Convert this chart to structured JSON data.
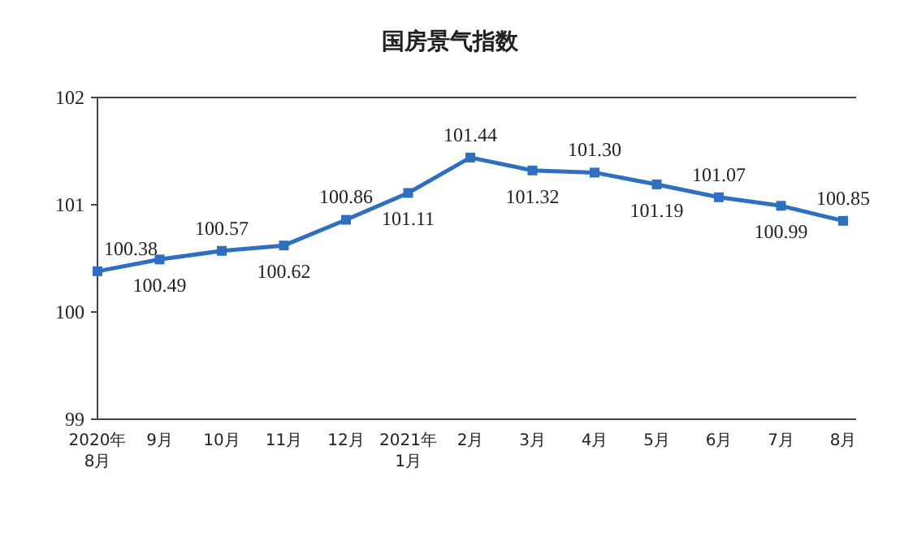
{
  "chart_data": {
    "type": "line",
    "title": "国房景气指数",
    "categories": [
      "2020年\n8月",
      "9月",
      "10月",
      "11月",
      "12月",
      "2021年\n1月",
      "2月",
      "3月",
      "4月",
      "5月",
      "6月",
      "7月",
      "8月"
    ],
    "series": [
      {
        "color": "#2e6fbf",
        "values": [
          100.38,
          100.49,
          100.57,
          100.62,
          100.86,
          101.11,
          101.44,
          101.32,
          101.3,
          101.19,
          101.07,
          100.99,
          100.85
        ]
      }
    ],
    "value_labels": [
      "100.38",
      "100.49",
      "100.57",
      "100.62",
      "100.86",
      "101.11",
      "101.44",
      "101.32",
      "101.30",
      "101.19",
      "101.07",
      "100.99",
      "100.85"
    ],
    "ylim": [
      99,
      102
    ],
    "yticks": [
      99,
      100,
      101,
      102
    ],
    "marker": "square",
    "grid": false
  }
}
